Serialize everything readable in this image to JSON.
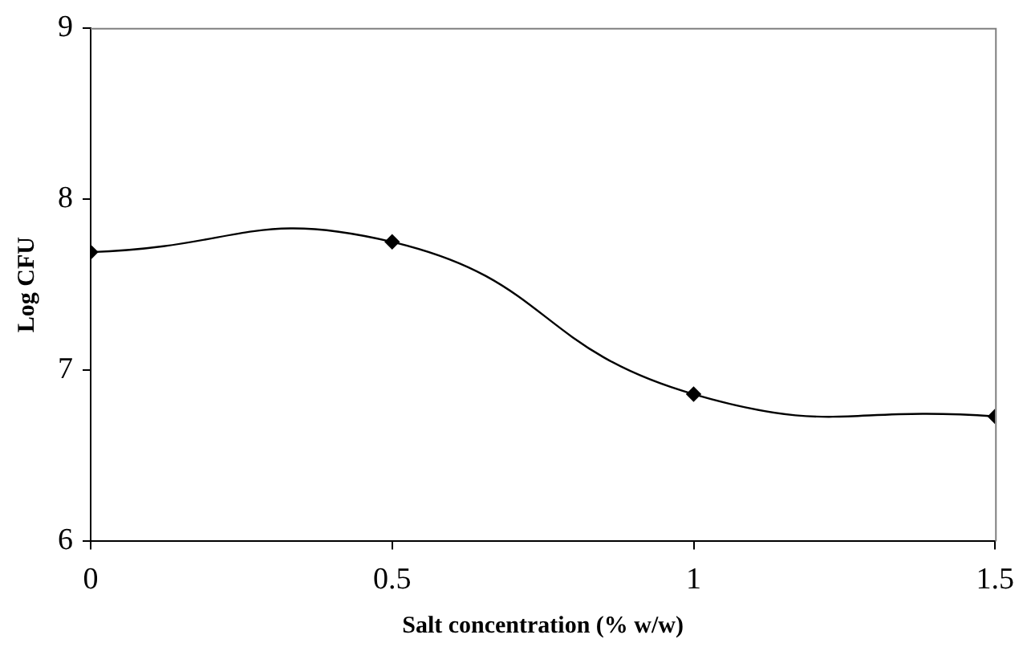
{
  "chart_data": {
    "type": "line",
    "xlabel": "Salt concentration (% w/w)",
    "ylabel": "Log CFU",
    "x": [
      0,
      0.5,
      1,
      1.5
    ],
    "series": [
      {
        "color": "#000000",
        "values": [
          7.69,
          7.75,
          6.86,
          6.73
        ]
      }
    ],
    "xlim": [
      0,
      1.5
    ],
    "xticks": [
      0,
      0.5,
      1,
      1.5
    ],
    "ylim": [
      6,
      9
    ],
    "yticks": [
      6,
      7,
      8,
      9
    ],
    "grid": false,
    "legend": false,
    "marker": "diamond",
    "line_style": "solid"
  }
}
